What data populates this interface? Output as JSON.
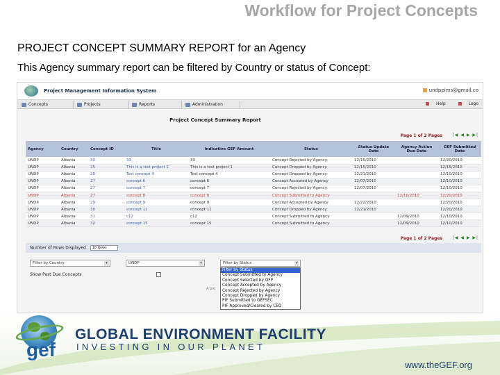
{
  "slide": {
    "title": "Workflow for Project Concepts",
    "heading": "PROJECT CONCEPT SUMMARY REPORT for an Agency",
    "description": "This Agency summary report can be filtered by Country or status of Concept:"
  },
  "app": {
    "name": "Project Management Information System",
    "user_email": "undppims@gmail.co",
    "nav": [
      {
        "label": "Concepts",
        "icon": "concepts-icon"
      },
      {
        "label": "Projects",
        "icon": "projects-icon"
      },
      {
        "label": "Reports",
        "icon": "reports-icon"
      },
      {
        "label": "Administration",
        "icon": "administration-icon"
      }
    ],
    "help_label": "Help",
    "logout_label": "Logo"
  },
  "report": {
    "title": "Project Concept Summary Report",
    "pager_text": "Page 1 of 2 Pages",
    "pager_arrows": "|◀ ◀ ▶ ▶|",
    "columns": [
      "Agency",
      "Country",
      "Concept ID",
      "Title",
      "Indicative GEF Amount",
      "Status",
      "Status Update Date",
      "Agency Action Due Date",
      "GEF Submitted Date"
    ],
    "rows": [
      {
        "agency": "UNDP",
        "country": "Albania",
        "id": "33",
        "title": "33",
        "amount": "33",
        "status": "Concept Rejected by Agency",
        "update": "12/15/2010",
        "due": "",
        "submitted": "12/20/2010",
        "highlight": false
      },
      {
        "agency": "UNDP",
        "country": "Albania",
        "id": "25",
        "title": "This is a test project 1",
        "amount": "This is a test project 1",
        "status": "Concept Dropped by Agency",
        "update": "12/15/2010",
        "due": "",
        "submitted": "12/15/2010",
        "highlight": false
      },
      {
        "agency": "UNDP",
        "country": "Albania",
        "id": "20",
        "title": "Test concept 4",
        "amount": "Test concept 4",
        "status": "Concept Dropped by Agency",
        "update": "12/21/2010",
        "due": "",
        "submitted": "12/10/2010",
        "highlight": false
      },
      {
        "agency": "UNDP",
        "country": "Albania",
        "id": "27",
        "title": "concept 6",
        "amount": "concept 6",
        "status": "Concept Accepted by Agency",
        "update": "12/07/2010",
        "due": "",
        "submitted": "12/10/2010",
        "highlight": false
      },
      {
        "agency": "UNDP",
        "country": "Albania",
        "id": "27",
        "title": "concept 7",
        "amount": "concept 7",
        "status": "Concept Rejected by Agency",
        "update": "12/07/2010",
        "due": "",
        "submitted": "12/10/2010",
        "highlight": false
      },
      {
        "agency": "UNDP",
        "country": "Albania",
        "id": "27",
        "title": "concept 8",
        "amount": "concept 8",
        "status": "Concept Submitted to Agency",
        "update": "",
        "due": "12/16/2010",
        "submitted": "12/20/2010",
        "highlight": true
      },
      {
        "agency": "UNDP",
        "country": "Albania",
        "id": "29",
        "title": "concept 9",
        "amount": "concept 9",
        "status": "Concept Accepted by Agency",
        "update": "12/22/2010",
        "due": "",
        "submitted": "12/20/2010",
        "highlight": false
      },
      {
        "agency": "UNDP",
        "country": "Albania",
        "id": "30",
        "title": "concept 11",
        "amount": "concept 11",
        "status": "Concept Dropped by Agency",
        "update": "12/21/2010",
        "due": "",
        "submitted": "12/20/2010",
        "highlight": false
      },
      {
        "agency": "UNDP",
        "country": "Albania",
        "id": "31",
        "title": "c12",
        "amount": "c12",
        "status": "Concept Submitted to Agency",
        "update": "",
        "due": "12/09/2010",
        "submitted": "12/10/2010",
        "highlight": false
      },
      {
        "agency": "UNDP",
        "country": "Albania",
        "id": "32",
        "title": "concept 15",
        "amount": "concept 15",
        "status": "Concept Submitted to Agency",
        "update": "",
        "due": "12/09/2010",
        "submitted": "12/10/2010",
        "highlight": false
      }
    ],
    "rows_label": "Number of Rows Displayed",
    "rows_value": "10 Rows",
    "filter_country": "Filter by Country",
    "filter_agency": "UNDP",
    "filter_status": "Filter by Status",
    "show_past_due": "Show Past Due Concepts",
    "footnote": "A pro",
    "status_options": [
      "Filter by Status",
      "Concept Submitted to Agency",
      "Concept Selected by OFP",
      "Concept Accepted by Agency",
      "Concept Rejected by Agency",
      "Concept Dropped by Agency",
      "PIF Submitted to GEFSEC",
      "PIF Approved/Cleared by CEO"
    ]
  },
  "brand": {
    "logo_letters": "gef",
    "org_name": "GLOBAL ENVIRONMENT FACILITY",
    "tagline": "INVESTING IN OUR PLANET",
    "website": "www.theGEF.org"
  }
}
